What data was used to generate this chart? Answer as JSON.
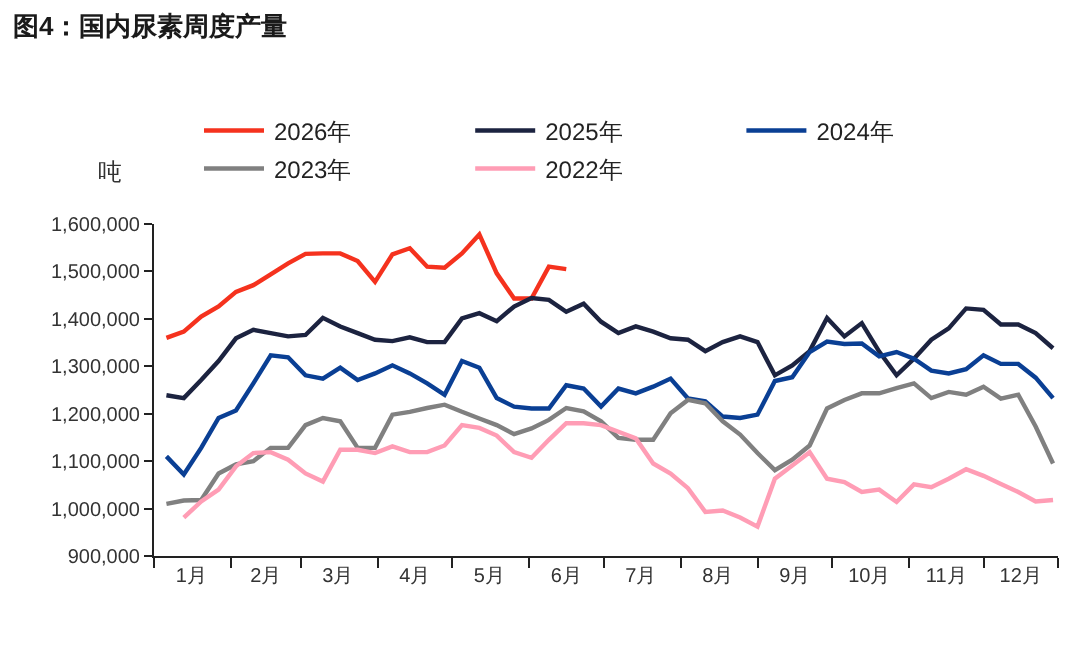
{
  "chart_data": {
    "type": "line",
    "title": "图4：国内尿素周度产量",
    "ylabel": "吨",
    "x": [
      "--01-06",
      "--01-13",
      "--01-20",
      "--01-27",
      "--02-03",
      "--02-10",
      "--02-17",
      "--02-24",
      "--03-03",
      "--03-10",
      "--03-17",
      "--03-24",
      "--03-31",
      "--04-07",
      "--04-14",
      "--04-21",
      "--04-28",
      "--05-05",
      "--05-12",
      "--05-19",
      "--05-26",
      "--06-02",
      "--06-09",
      "--06-16",
      "--06-23",
      "--06-30",
      "--07-07",
      "--07-14",
      "--07-21",
      "--07-28",
      "--08-04",
      "--08-11",
      "--08-18",
      "--08-25",
      "--09-01",
      "--09-08",
      "--09-15",
      "--09-22",
      "--09-29",
      "--10-06",
      "--10-13",
      "--10-20",
      "--10-27",
      "--11-03",
      "--11-10",
      "--11-17",
      "--11-24",
      "--12-01",
      "--12-08",
      "--12-15",
      "--12-22",
      "--12-29"
    ],
    "series": [
      {
        "name": "2026年",
        "color": "#f5321e",
        "values": [
          1360000,
          1373000,
          1405000,
          1426000,
          1457000,
          1471000,
          1494000,
          1517000,
          1537000,
          1538000,
          1538000,
          1522000,
          1478000,
          1536000,
          1549000,
          1510000,
          1508000,
          1538000,
          1578000,
          1496000,
          1443000,
          1443000,
          1510000,
          1505000,
          null,
          null,
          null,
          null,
          null,
          null,
          null,
          null,
          null,
          null,
          null,
          null,
          null,
          null,
          null,
          null,
          null,
          null,
          null,
          null,
          null,
          null,
          null,
          null,
          null,
          null,
          null,
          null
        ]
      },
      {
        "name": "2025年",
        "color": "#1c2340",
        "values": [
          1239000,
          1233000,
          1271000,
          1311000,
          1359000,
          1377000,
          1370000,
          1363000,
          1366000,
          1402000,
          1384000,
          1370000,
          1356000,
          1353000,
          1361000,
          1351000,
          1351000,
          1401000,
          1412000,
          1395000,
          1426000,
          1444000,
          1440000,
          1415000,
          1432000,
          1394000,
          1370000,
          1384000,
          1373000,
          1359000,
          1356000,
          1332000,
          1351000,
          1363000,
          1351000,
          1281000,
          1302000,
          1332000,
          1402000,
          1363000,
          1391000,
          1331000,
          1281000,
          1316000,
          1356000,
          1380000,
          1422000,
          1419000,
          1388000,
          1388000,
          1370000,
          1338000
        ]
      },
      {
        "name": "2024年",
        "color": "#0a3f94",
        "values": [
          1110000,
          1072000,
          1128000,
          1191000,
          1207000,
          1264000,
          1323000,
          1319000,
          1281000,
          1274000,
          1297000,
          1271000,
          1285000,
          1302000,
          1285000,
          1264000,
          1240000,
          1311000,
          1297000,
          1233000,
          1215000,
          1211000,
          1211000,
          1260000,
          1253000,
          1215000,
          1253000,
          1243000,
          1257000,
          1274000,
          1232000,
          1226000,
          1194000,
          1191000,
          1198000,
          1269000,
          1277000,
          1330000,
          1352000,
          1347000,
          1348000,
          1321000,
          1330000,
          1316000,
          1291000,
          1285000,
          1294000,
          1323000,
          1305000,
          1305000,
          1276000,
          1233000
        ]
      },
      {
        "name": "2023年",
        "color": "#808080",
        "values": [
          1010000,
          1017000,
          1018000,
          1074000,
          1093000,
          1100000,
          1128000,
          1128000,
          1176000,
          1191000,
          1184000,
          1128000,
          1128000,
          1198000,
          1204000,
          1212000,
          1219000,
          1204000,
          1190000,
          1176000,
          1157000,
          1169000,
          1187000,
          1212000,
          1205000,
          1184000,
          1149000,
          1145000,
          1145000,
          1201000,
          1229000,
          1222000,
          1184000,
          1156000,
          1117000,
          1081000,
          1103000,
          1133000,
          1211000,
          1229000,
          1243000,
          1243000,
          1254000,
          1264000,
          1233000,
          1246000,
          1240000,
          1257000,
          1232000,
          1240000,
          1173000,
          1095000
        ]
      },
      {
        "name": "2022年",
        "color": "#ff9db5",
        "values": [
          null,
          981000,
          1015000,
          1040000,
          1089000,
          1117000,
          1119000,
          1103000,
          1074000,
          1057000,
          1124000,
          1124000,
          1117000,
          1131000,
          1119000,
          1119000,
          1133000,
          1176000,
          1170000,
          1154000,
          1119000,
          1107000,
          1145000,
          1180000,
          1180000,
          1176000,
          1162000,
          1148000,
          1095000,
          1074000,
          1043000,
          993000,
          996000,
          981000,
          962000,
          1063000,
          1091000,
          1119000,
          1063000,
          1056000,
          1035000,
          1040000,
          1014000,
          1051000,
          1045000,
          1063000,
          1083000,
          1069000,
          1052000,
          1035000,
          1015000,
          1018000
        ]
      }
    ],
    "xlim": [
      "--01-01",
      "--12-31"
    ],
    "xticks": [
      {
        "value": "--01-01",
        "label": null
      },
      {
        "value": "--01-16",
        "label": "1月"
      },
      {
        "value": "--02-01",
        "label": null
      },
      {
        "value": "--02-15",
        "label": "2月"
      },
      {
        "value": "--03-01",
        "label": null
      },
      {
        "value": "--03-16",
        "label": "3月"
      },
      {
        "value": "--04-01",
        "label": null
      },
      {
        "value": "--04-16",
        "label": "4月"
      },
      {
        "value": "--05-01",
        "label": null
      },
      {
        "value": "--05-16",
        "label": "5月"
      },
      {
        "value": "--06-01",
        "label": null
      },
      {
        "value": "--06-16",
        "label": "6月"
      },
      {
        "value": "--07-01",
        "label": null
      },
      {
        "value": "--07-16",
        "label": "7月"
      },
      {
        "value": "--08-01",
        "label": null
      },
      {
        "value": "--08-16",
        "label": "8月"
      },
      {
        "value": "--09-01",
        "label": null
      },
      {
        "value": "--09-16",
        "label": "9月"
      },
      {
        "value": "--10-01",
        "label": null
      },
      {
        "value": "--10-16",
        "label": "10月"
      },
      {
        "value": "--11-01",
        "label": null
      },
      {
        "value": "--11-16",
        "label": "11月"
      },
      {
        "value": "--12-01",
        "label": null
      },
      {
        "value": "--12-16",
        "label": "12月"
      },
      {
        "value": "--12-31",
        "label": null
      }
    ],
    "ylim": [
      900000,
      1600000
    ],
    "yticks": [
      {
        "value": 900000,
        "label": "900,000"
      },
      {
        "value": 1000000,
        "label": "1,000,000"
      },
      {
        "value": 1100000,
        "label": "1,100,000"
      },
      {
        "value": 1200000,
        "label": "1,200,000"
      },
      {
        "value": 1300000,
        "label": "1,300,000"
      },
      {
        "value": 1400000,
        "label": "1,400,000"
      },
      {
        "value": 1500000,
        "label": "1,500,000"
      },
      {
        "value": 1600000,
        "label": "1,600,000"
      }
    ],
    "grid": false,
    "legend": "top",
    "marker": "none",
    "line_style": "solid"
  }
}
